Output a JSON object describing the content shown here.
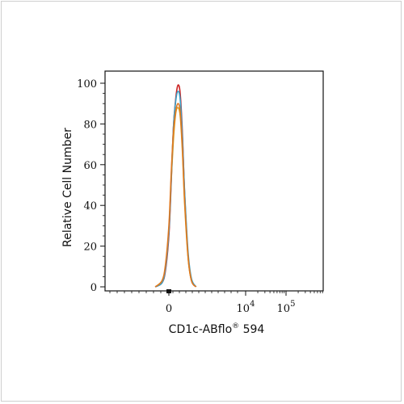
{
  "chart_data": {
    "type": "line",
    "title": "",
    "xlabel": "CD1c-ABflo",
    "xlabel_superscript": "®",
    "xlabel_suffix": " 594",
    "ylabel": "Relative Cell Number",
    "ylim": [
      0,
      100
    ],
    "yticks": [
      "0",
      "20",
      "40",
      "60",
      "80",
      "100"
    ],
    "x_scale": "biexponential",
    "xticks": [
      {
        "label": "0",
        "exp": ""
      },
      {
        "label": "10",
        "exp": "4"
      },
      {
        "label": "10",
        "exp": "5"
      }
    ],
    "grid": false,
    "legend": "none",
    "colors": [
      "#cc2222",
      "#d9a020",
      "#38a0c8",
      "#e07820"
    ],
    "series": [
      {
        "color": "#cc2222",
        "x": [
          -0.6,
          -0.3,
          -0.15,
          0.0,
          0.1,
          0.2,
          0.3,
          0.4,
          0.5,
          0.6,
          0.7,
          0.85,
          1.0,
          1.2
        ],
        "values": [
          0,
          2,
          8,
          25,
          50,
          78,
          92,
          99,
          95,
          75,
          45,
          15,
          3,
          0
        ]
      },
      {
        "color": "#d9a020",
        "x": [
          -0.6,
          -0.3,
          -0.15,
          0.0,
          0.1,
          0.2,
          0.3,
          0.4,
          0.5,
          0.6,
          0.7,
          0.85,
          1.0,
          1.2
        ],
        "values": [
          0,
          3,
          10,
          28,
          52,
          72,
          85,
          88,
          84,
          66,
          40,
          14,
          3,
          0
        ]
      },
      {
        "color": "#38a0c8",
        "x": [
          -0.6,
          -0.3,
          -0.15,
          0.0,
          0.1,
          0.2,
          0.3,
          0.4,
          0.5,
          0.6,
          0.7,
          0.85,
          1.0,
          1.2
        ],
        "values": [
          0,
          2,
          9,
          27,
          52,
          78,
          91,
          96,
          92,
          73,
          46,
          17,
          4,
          0
        ]
      },
      {
        "color": "#e07820",
        "x": [
          -0.6,
          -0.3,
          -0.15,
          0.0,
          0.1,
          0.2,
          0.3,
          0.4,
          0.5,
          0.6,
          0.7,
          0.85,
          1.0,
          1.2
        ],
        "values": [
          0,
          3,
          11,
          30,
          55,
          76,
          86,
          90,
          86,
          68,
          42,
          15,
          3,
          0
        ]
      }
    ]
  }
}
